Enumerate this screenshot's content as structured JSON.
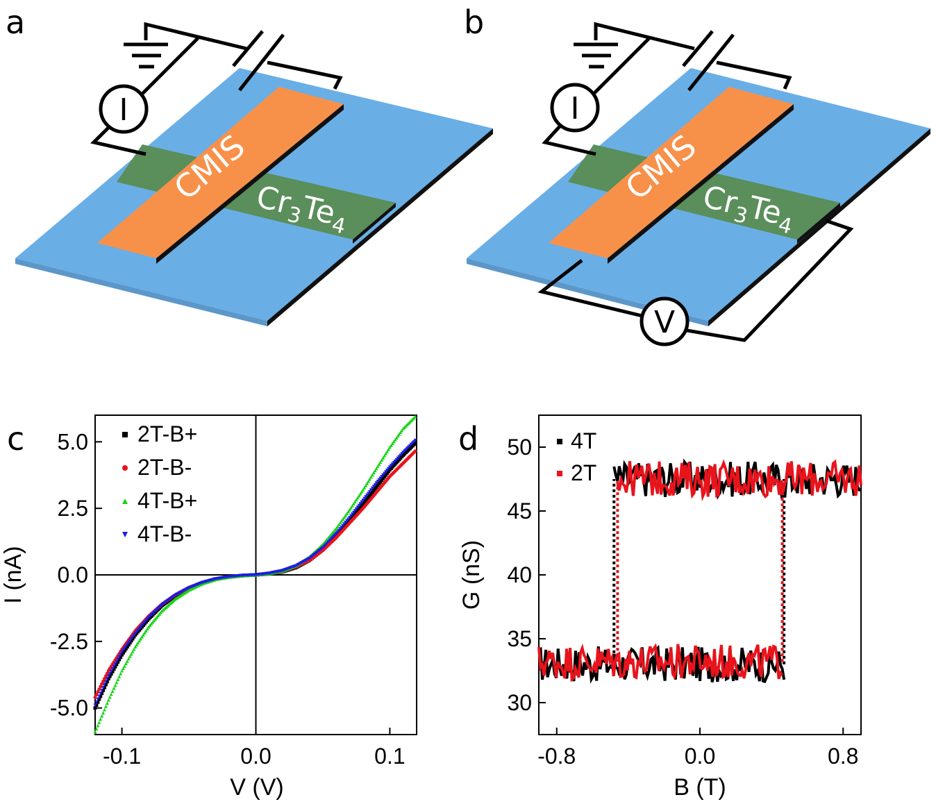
{
  "panels": {
    "a": {
      "letter": "a"
    },
    "b": {
      "letter": "b"
    },
    "c": {
      "letter": "c"
    },
    "d": {
      "letter": "d"
    }
  },
  "device": {
    "top_strip_label": "CMIS",
    "bottom_strip_label_main": "Cr",
    "bottom_strip_sub1": "3",
    "bottom_strip_mid": "Te",
    "bottom_strip_sub2": "4",
    "current_meter": "I",
    "voltage_meter": "V"
  },
  "colors": {
    "substrate": "#6aaee6",
    "cmis": "#f7914a",
    "cr3te4": "#5a8e5a",
    "black": "#000000",
    "red": "#e8141c",
    "green": "#18d418",
    "blue": "#1c1ce0"
  },
  "chart_data": [
    {
      "id": "c",
      "type": "line",
      "xlabel": "V (V)",
      "ylabel": "I (nA)",
      "xlim": [
        -0.12,
        0.12
      ],
      "ylim": [
        -6.0,
        6.0
      ],
      "xticks": [
        -0.1,
        0.0,
        0.1
      ],
      "xtick_labels": [
        "-0.1",
        "0.0",
        "0.1"
      ],
      "yticks": [
        -5.0,
        -2.5,
        0.0,
        2.5,
        5.0
      ],
      "ytick_labels": [
        "-5.0",
        "-2.5",
        "0.0",
        "2.5",
        "5.0"
      ],
      "zero_lines": true,
      "legend": "top-left",
      "series": [
        {
          "name": "2T-B+",
          "marker": "square",
          "color": "#000000",
          "x": [
            -0.12,
            -0.11,
            -0.1,
            -0.09,
            -0.08,
            -0.07,
            -0.06,
            -0.05,
            -0.04,
            -0.03,
            -0.02,
            -0.01,
            0.0,
            0.01,
            0.02,
            0.03,
            0.04,
            0.05,
            0.06,
            0.07,
            0.08,
            0.09,
            0.1,
            0.11,
            0.12
          ],
          "y": [
            -5.0,
            -3.9,
            -3.0,
            -2.25,
            -1.65,
            -1.15,
            -0.78,
            -0.5,
            -0.3,
            -0.16,
            -0.08,
            -0.03,
            0.0,
            0.04,
            0.12,
            0.28,
            0.55,
            0.95,
            1.5,
            2.05,
            2.65,
            3.3,
            3.95,
            4.5,
            5.0
          ]
        },
        {
          "name": "2T-B-",
          "marker": "circle",
          "color": "#e8141c",
          "x": [
            -0.12,
            -0.11,
            -0.1,
            -0.09,
            -0.08,
            -0.07,
            -0.06,
            -0.05,
            -0.04,
            -0.03,
            -0.02,
            -0.01,
            0.0,
            0.01,
            0.02,
            0.03,
            0.04,
            0.05,
            0.06,
            0.07,
            0.08,
            0.09,
            0.1,
            0.11,
            0.12
          ],
          "y": [
            -4.6,
            -3.6,
            -2.8,
            -2.1,
            -1.55,
            -1.1,
            -0.75,
            -0.48,
            -0.29,
            -0.15,
            -0.07,
            -0.02,
            0.0,
            0.05,
            0.13,
            0.3,
            0.55,
            0.92,
            1.4,
            1.95,
            2.5,
            3.1,
            3.7,
            4.2,
            4.7
          ]
        },
        {
          "name": "4T-B+",
          "marker": "triangle-up",
          "color": "#18d418",
          "x": [
            -0.12,
            -0.11,
            -0.1,
            -0.09,
            -0.08,
            -0.07,
            -0.06,
            -0.05,
            -0.04,
            -0.03,
            -0.02,
            -0.01,
            0.0,
            0.01,
            0.02,
            0.03,
            0.04,
            0.05,
            0.06,
            0.07,
            0.08,
            0.09,
            0.1,
            0.11,
            0.12
          ],
          "y": [
            -5.9,
            -4.7,
            -3.6,
            -2.7,
            -1.95,
            -1.35,
            -0.9,
            -0.57,
            -0.33,
            -0.17,
            -0.08,
            -0.03,
            0.0,
            0.05,
            0.15,
            0.35,
            0.68,
            1.15,
            1.75,
            2.45,
            3.2,
            4.0,
            4.8,
            5.5,
            6.0
          ]
        },
        {
          "name": "4T-B-",
          "marker": "triangle-down",
          "color": "#1c1ce0",
          "x": [
            -0.12,
            -0.11,
            -0.1,
            -0.09,
            -0.08,
            -0.07,
            -0.06,
            -0.05,
            -0.04,
            -0.03,
            -0.02,
            -0.01,
            0.0,
            0.01,
            0.02,
            0.03,
            0.04,
            0.05,
            0.06,
            0.07,
            0.08,
            0.09,
            0.1,
            0.11,
            0.12
          ],
          "y": [
            -4.9,
            -3.8,
            -2.9,
            -2.2,
            -1.6,
            -1.12,
            -0.76,
            -0.49,
            -0.29,
            -0.15,
            -0.07,
            -0.02,
            0.0,
            0.06,
            0.16,
            0.34,
            0.62,
            1.02,
            1.55,
            2.15,
            2.8,
            3.45,
            4.05,
            4.6,
            5.1
          ]
        }
      ]
    },
    {
      "id": "d",
      "type": "line",
      "xlabel": "B (T)",
      "ylabel": "G (nS)",
      "xlim": [
        -0.9,
        0.9
      ],
      "ylim": [
        27.5,
        52.5
      ],
      "xticks": [
        -0.8,
        0.0,
        0.8
      ],
      "xtick_labels": [
        "-0.8",
        "0.0",
        "0.8"
      ],
      "yticks": [
        30,
        35,
        40,
        45,
        50
      ],
      "ytick_labels": [
        "30",
        "35",
        "40",
        "45",
        "50"
      ],
      "legend": "top-left",
      "series": [
        {
          "name": "4T",
          "marker": "square",
          "color": "#000000",
          "upper_level": 47.5,
          "lower_level": 33.0,
          "switch_down_B": -0.48,
          "switch_up_B": 0.47,
          "noise_amplitude": 1.0
        },
        {
          "name": "2T",
          "marker": "square",
          "color": "#e8141c",
          "upper_level": 47.5,
          "lower_level": 33.2,
          "switch_down_B": -0.46,
          "switch_up_B": 0.46,
          "noise_amplitude": 1.0
        }
      ]
    }
  ]
}
